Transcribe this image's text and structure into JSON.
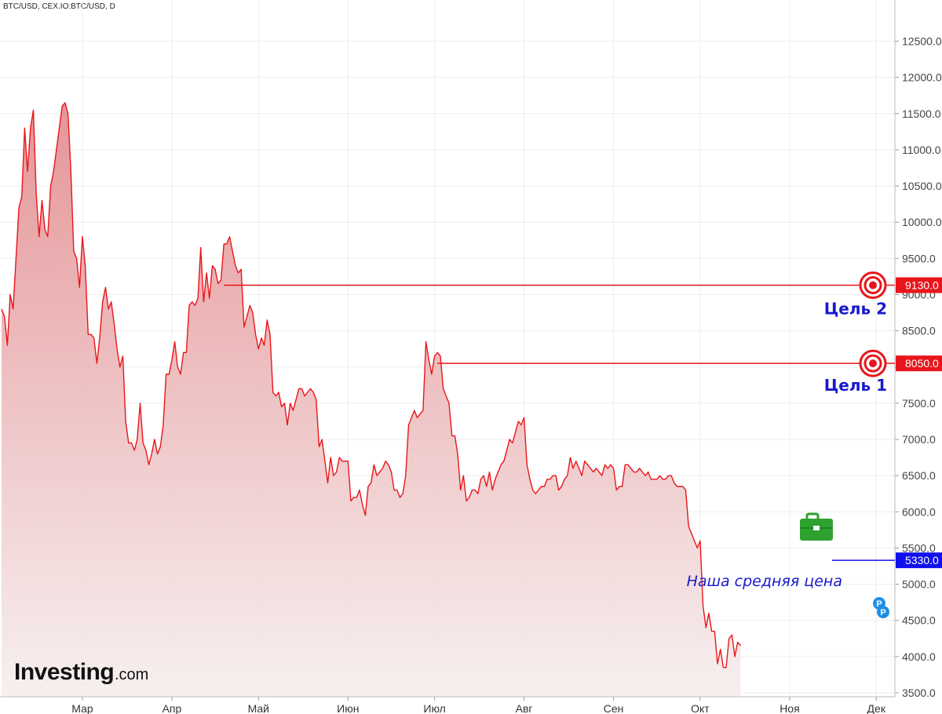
{
  "header": {
    "title": "BTC/USD, CEX.IO:BTC/USD, D"
  },
  "logo": {
    "main": "Investing",
    "domain": ".com"
  },
  "colors": {
    "line": "#e8161b",
    "fill_top": "#e48f92",
    "fill_bottom": "#f6eeee",
    "target": "#e8161b",
    "avg": "#1111ee",
    "briefcase": "#2ea12f",
    "pp": "#1e8fe6"
  },
  "annotations": {
    "target2": {
      "price": 9130,
      "badge": "9130.0",
      "label": "Цель 2"
    },
    "target1": {
      "price": 8050,
      "badge": "8050.0",
      "label": "Цель 1"
    },
    "average": {
      "price": 5330,
      "badge": "5330.0",
      "label": "Наша средняя цена",
      "icon": "briefcase-icon"
    },
    "pivot": {
      "text1": "P",
      "text2": "P",
      "icon": "pivot-marker-icon"
    }
  },
  "chart_data": {
    "type": "area",
    "title": "BTC/USD, CEX.IO:BTC/USD, D",
    "xlabel": "",
    "ylabel": "",
    "ylim": [
      3500,
      12700
    ],
    "grid": true,
    "y_ticks": [
      "12500.0",
      "12000.0",
      "11500.0",
      "11000.0",
      "10500.0",
      "10000.0",
      "9500.0",
      "9000.0",
      "8500.0",
      "8000.0",
      "7500.0",
      "7000.0",
      "6500.0",
      "6000.0",
      "5500.0",
      "5000.0",
      "4500.0",
      "4000.0",
      "3500.0"
    ],
    "x_ticks": [
      {
        "label": "Мар",
        "day": 28
      },
      {
        "label": "Апр",
        "day": 59
      },
      {
        "label": "Май",
        "day": 89
      },
      {
        "label": "Июн",
        "day": 120
      },
      {
        "label": "Июл",
        "day": 150
      },
      {
        "label": "Авг",
        "day": 181
      },
      {
        "label": "Сен",
        "day": 212
      },
      {
        "label": "Окт",
        "day": 242
      },
      {
        "label": "Ноя",
        "day": 273
      },
      {
        "label": "Дек",
        "day": 303
      }
    ],
    "series": [
      {
        "points": [
          [
            0,
            8800
          ],
          [
            1,
            8700
          ],
          [
            2,
            8300
          ],
          [
            3,
            9000
          ],
          [
            4,
            8800
          ],
          [
            5,
            9500
          ],
          [
            6,
            10200
          ],
          [
            7,
            10350
          ],
          [
            8,
            11300
          ],
          [
            9,
            10700
          ],
          [
            10,
            11300
          ],
          [
            11,
            11550
          ],
          [
            12,
            10400
          ],
          [
            13,
            9800
          ],
          [
            14,
            10300
          ],
          [
            15,
            9900
          ],
          [
            16,
            9800
          ],
          [
            17,
            10500
          ],
          [
            18,
            10700
          ],
          [
            19,
            11000
          ],
          [
            20,
            11300
          ],
          [
            21,
            11600
          ],
          [
            22,
            11650
          ],
          [
            23,
            11500
          ],
          [
            24,
            10700
          ],
          [
            25,
            9600
          ],
          [
            26,
            9500
          ],
          [
            27,
            9100
          ],
          [
            28,
            9800
          ],
          [
            29,
            9400
          ],
          [
            30,
            8450
          ],
          [
            31,
            8450
          ],
          [
            32,
            8400
          ],
          [
            33,
            8050
          ],
          [
            34,
            8400
          ],
          [
            35,
            8900
          ],
          [
            36,
            9100
          ],
          [
            37,
            8800
          ],
          [
            38,
            8900
          ],
          [
            39,
            8600
          ],
          [
            40,
            8250
          ],
          [
            41,
            8000
          ],
          [
            42,
            8150
          ],
          [
            43,
            7250
          ],
          [
            44,
            6950
          ],
          [
            45,
            6950
          ],
          [
            46,
            6850
          ],
          [
            47,
            7000
          ],
          [
            48,
            7500
          ],
          [
            49,
            6950
          ],
          [
            50,
            6850
          ],
          [
            51,
            6650
          ],
          [
            52,
            6800
          ],
          [
            53,
            7000
          ],
          [
            54,
            6800
          ],
          [
            55,
            6900
          ],
          [
            56,
            7200
          ],
          [
            57,
            7900
          ],
          [
            58,
            7900
          ],
          [
            59,
            8100
          ],
          [
            60,
            8350
          ],
          [
            61,
            8000
          ],
          [
            62,
            7900
          ],
          [
            63,
            8200
          ],
          [
            64,
            8200
          ],
          [
            65,
            8850
          ],
          [
            66,
            8900
          ],
          [
            67,
            8850
          ],
          [
            68,
            8950
          ],
          [
            69,
            9650
          ],
          [
            70,
            8900
          ],
          [
            71,
            9300
          ],
          [
            72,
            8950
          ],
          [
            73,
            9400
          ],
          [
            74,
            9350
          ],
          [
            75,
            9150
          ],
          [
            76,
            9200
          ],
          [
            77,
            9700
          ],
          [
            78,
            9700
          ],
          [
            79,
            9800
          ],
          [
            80,
            9600
          ],
          [
            81,
            9400
          ],
          [
            82,
            9300
          ],
          [
            83,
            9350
          ],
          [
            84,
            8550
          ],
          [
            85,
            8700
          ],
          [
            86,
            8850
          ],
          [
            87,
            8750
          ],
          [
            88,
            8450
          ],
          [
            89,
            8250
          ],
          [
            90,
            8400
          ],
          [
            91,
            8300
          ],
          [
            92,
            8650
          ],
          [
            93,
            8450
          ],
          [
            94,
            7650
          ],
          [
            95,
            7600
          ],
          [
            96,
            7650
          ],
          [
            97,
            7450
          ],
          [
            98,
            7500
          ],
          [
            99,
            7200
          ],
          [
            100,
            7500
          ],
          [
            101,
            7400
          ],
          [
            102,
            7550
          ],
          [
            103,
            7700
          ],
          [
            104,
            7700
          ],
          [
            105,
            7600
          ],
          [
            106,
            7650
          ],
          [
            107,
            7700
          ],
          [
            108,
            7650
          ],
          [
            109,
            7550
          ],
          [
            110,
            6900
          ],
          [
            111,
            7000
          ],
          [
            112,
            6700
          ],
          [
            113,
            6400
          ],
          [
            114,
            6750
          ],
          [
            115,
            6500
          ],
          [
            116,
            6550
          ],
          [
            117,
            6750
          ],
          [
            118,
            6700
          ],
          [
            119,
            6700
          ],
          [
            120,
            6700
          ],
          [
            121,
            6150
          ],
          [
            122,
            6200
          ],
          [
            123,
            6200
          ],
          [
            124,
            6300
          ],
          [
            125,
            6100
          ],
          [
            126,
            5950
          ],
          [
            127,
            6350
          ],
          [
            128,
            6400
          ],
          [
            129,
            6650
          ],
          [
            130,
            6500
          ],
          [
            131,
            6550
          ],
          [
            132,
            6600
          ],
          [
            133,
            6700
          ],
          [
            134,
            6650
          ],
          [
            135,
            6550
          ],
          [
            136,
            6300
          ],
          [
            137,
            6300
          ],
          [
            138,
            6200
          ],
          [
            139,
            6250
          ],
          [
            140,
            6500
          ],
          [
            141,
            7200
          ],
          [
            142,
            7300
          ],
          [
            143,
            7400
          ],
          [
            144,
            7300
          ],
          [
            145,
            7350
          ],
          [
            146,
            7400
          ],
          [
            147,
            8350
          ],
          [
            148,
            8100
          ],
          [
            149,
            7900
          ],
          [
            150,
            8150
          ],
          [
            151,
            8200
          ],
          [
            152,
            8150
          ],
          [
            153,
            7700
          ],
          [
            154,
            7600
          ],
          [
            155,
            7500
          ],
          [
            156,
            7050
          ],
          [
            157,
            7050
          ],
          [
            158,
            6800
          ],
          [
            159,
            6300
          ],
          [
            160,
            6500
          ],
          [
            161,
            6150
          ],
          [
            162,
            6200
          ],
          [
            163,
            6300
          ],
          [
            164,
            6300
          ],
          [
            165,
            6250
          ],
          [
            166,
            6450
          ],
          [
            167,
            6500
          ],
          [
            168,
            6350
          ],
          [
            169,
            6550
          ],
          [
            170,
            6300
          ],
          [
            171,
            6450
          ],
          [
            172,
            6550
          ],
          [
            173,
            6650
          ],
          [
            174,
            6700
          ],
          [
            175,
            6850
          ],
          [
            176,
            7000
          ],
          [
            177,
            6950
          ],
          [
            178,
            7100
          ],
          [
            179,
            7250
          ],
          [
            180,
            7200
          ],
          [
            181,
            7300
          ],
          [
            182,
            6650
          ],
          [
            183,
            6450
          ],
          [
            184,
            6300
          ],
          [
            185,
            6250
          ],
          [
            186,
            6300
          ],
          [
            187,
            6350
          ],
          [
            188,
            6350
          ],
          [
            189,
            6450
          ],
          [
            190,
            6450
          ],
          [
            191,
            6500
          ],
          [
            192,
            6500
          ],
          [
            193,
            6300
          ],
          [
            194,
            6350
          ],
          [
            195,
            6450
          ],
          [
            196,
            6500
          ],
          [
            197,
            6750
          ],
          [
            198,
            6600
          ],
          [
            199,
            6700
          ],
          [
            200,
            6600
          ],
          [
            201,
            6500
          ],
          [
            202,
            6700
          ],
          [
            203,
            6650
          ],
          [
            204,
            6600
          ],
          [
            205,
            6550
          ],
          [
            206,
            6600
          ],
          [
            207,
            6550
          ],
          [
            208,
            6500
          ],
          [
            209,
            6650
          ],
          [
            210,
            6600
          ],
          [
            211,
            6650
          ],
          [
            212,
            6600
          ],
          [
            213,
            6300
          ],
          [
            214,
            6350
          ],
          [
            215,
            6350
          ],
          [
            216,
            6650
          ],
          [
            217,
            6650
          ],
          [
            218,
            6600
          ],
          [
            219,
            6550
          ],
          [
            220,
            6550
          ],
          [
            221,
            6600
          ],
          [
            222,
            6550
          ],
          [
            223,
            6500
          ],
          [
            224,
            6550
          ],
          [
            225,
            6450
          ],
          [
            226,
            6450
          ],
          [
            227,
            6450
          ],
          [
            228,
            6500
          ],
          [
            229,
            6450
          ],
          [
            230,
            6450
          ],
          [
            231,
            6500
          ],
          [
            232,
            6500
          ],
          [
            233,
            6400
          ],
          [
            234,
            6350
          ],
          [
            235,
            6350
          ],
          [
            236,
            6350
          ],
          [
            237,
            6300
          ],
          [
            238,
            5800
          ],
          [
            239,
            5700
          ],
          [
            240,
            5600
          ],
          [
            241,
            5500
          ],
          [
            242,
            5600
          ],
          [
            243,
            4700
          ],
          [
            244,
            4400
          ],
          [
            245,
            4600
          ],
          [
            246,
            4350
          ],
          [
            247,
            4350
          ],
          [
            248,
            3900
          ],
          [
            249,
            4100
          ],
          [
            250,
            3850
          ],
          [
            251,
            3850
          ],
          [
            252,
            4250
          ],
          [
            253,
            4300
          ],
          [
            254,
            4000
          ],
          [
            255,
            4200
          ],
          [
            256,
            4150
          ]
        ]
      }
    ]
  }
}
